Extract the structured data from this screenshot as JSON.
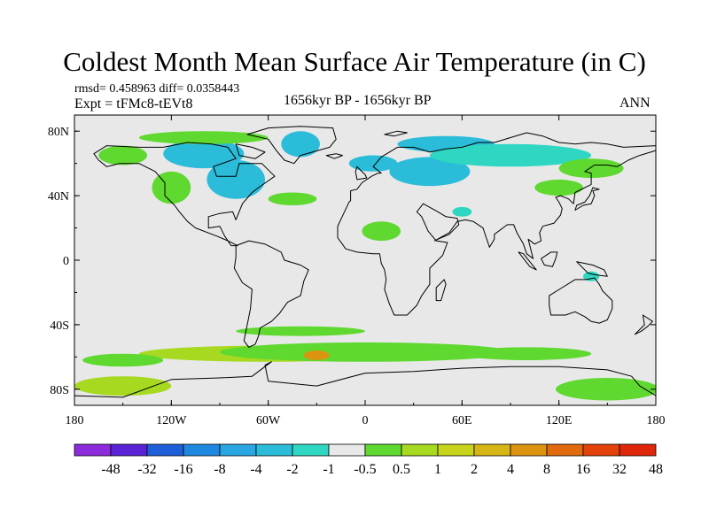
{
  "title": "Coldest Month Mean Surface Air Temperature (in C)",
  "stats": "rmsd= 0.458963 diff= 0.0358443",
  "experiment": "Expt = tFMc8-tEVt8",
  "period": "1656kyr BP - 1656kyr BP",
  "season": "ANN",
  "map": {
    "lon_range": [
      -180,
      180
    ],
    "lat_range": [
      -90,
      90
    ],
    "ocean_color": "#e8e8e8",
    "coast_color": "#000000",
    "x_ticks": [
      {
        "value": -180,
        "label": "180"
      },
      {
        "value": -120,
        "label": "120W"
      },
      {
        "value": -60,
        "label": "60W"
      },
      {
        "value": 0,
        "label": "0"
      },
      {
        "value": 60,
        "label": "60E"
      },
      {
        "value": 120,
        "label": "120E"
      },
      {
        "value": 180,
        "label": "180"
      }
    ],
    "y_ticks": [
      {
        "value": 80,
        "label": "80N"
      },
      {
        "value": 40,
        "label": "40N"
      },
      {
        "value": 0,
        "label": "0"
      },
      {
        "value": -40,
        "label": "40S"
      },
      {
        "value": -80,
        "label": "80S"
      }
    ]
  },
  "colorbar": {
    "colors": [
      "#8b2bdb",
      "#5a24d6",
      "#1e5ed8",
      "#1e88e0",
      "#2aa7e2",
      "#2bbcd9",
      "#2fd7c2",
      "#e8e8e8",
      "#5fd82f",
      "#a6d91f",
      "#c8d41c",
      "#d6b514",
      "#dc9410",
      "#e06a0c",
      "#e3420a",
      "#e0260a"
    ],
    "labels": [
      "-48",
      "-32",
      "-16",
      "-8",
      "-4",
      "-2",
      "-1",
      "-0.5",
      "0.5",
      "1",
      "2",
      "4",
      "8",
      "16",
      "32",
      "48"
    ]
  },
  "anomalies": [
    {
      "lon": 150,
      "lat": -80,
      "rx": 32,
      "ry": 7,
      "color": "#5fd82f"
    },
    {
      "lon": -150,
      "lat": -78,
      "rx": 30,
      "ry": 6,
      "color": "#a6d91f"
    },
    {
      "lon": -60,
      "lat": -58,
      "rx": 80,
      "ry": 5,
      "color": "#a6d91f"
    },
    {
      "lon": 0,
      "lat": -57,
      "rx": 90,
      "ry": 6,
      "color": "#5fd82f"
    },
    {
      "lon": -30,
      "lat": -59,
      "rx": 8,
      "ry": 3,
      "color": "#dc9410"
    },
    {
      "lon": 100,
      "lat": -58,
      "rx": 40,
      "ry": 4,
      "color": "#5fd82f"
    },
    {
      "lon": -150,
      "lat": -62,
      "rx": 25,
      "ry": 4,
      "color": "#5fd82f"
    },
    {
      "lon": -40,
      "lat": -44,
      "rx": 40,
      "ry": 3,
      "color": "#5fd82f"
    },
    {
      "lon": -100,
      "lat": 66,
      "rx": 25,
      "ry": 9,
      "color": "#2bbcd9"
    },
    {
      "lon": -80,
      "lat": 50,
      "rx": 18,
      "ry": 12,
      "color": "#2bbcd9"
    },
    {
      "lon": -120,
      "lat": 45,
      "rx": 12,
      "ry": 10,
      "color": "#5fd82f"
    },
    {
      "lon": -150,
      "lat": 65,
      "rx": 15,
      "ry": 6,
      "color": "#5fd82f"
    },
    {
      "lon": -45,
      "lat": 38,
      "rx": 15,
      "ry": 4,
      "color": "#5fd82f"
    },
    {
      "lon": 10,
      "lat": 18,
      "rx": 12,
      "ry": 6,
      "color": "#5fd82f"
    },
    {
      "lon": 5,
      "lat": 60,
      "rx": 15,
      "ry": 5,
      "color": "#2bbcd9"
    },
    {
      "lon": 40,
      "lat": 55,
      "rx": 25,
      "ry": 9,
      "color": "#2bbcd9"
    },
    {
      "lon": 50,
      "lat": 72,
      "rx": 30,
      "ry": 5,
      "color": "#2bbcd9"
    },
    {
      "lon": 90,
      "lat": 65,
      "rx": 50,
      "ry": 7,
      "color": "#2fd7c2"
    },
    {
      "lon": 140,
      "lat": 57,
      "rx": 20,
      "ry": 6,
      "color": "#5fd82f"
    },
    {
      "lon": 120,
      "lat": 45,
      "rx": 15,
      "ry": 5,
      "color": "#5fd82f"
    },
    {
      "lon": -100,
      "lat": 76,
      "rx": 40,
      "ry": 4,
      "color": "#5fd82f"
    },
    {
      "lon": -40,
      "lat": 72,
      "rx": 12,
      "ry": 8,
      "color": "#2bbcd9"
    },
    {
      "lon": 60,
      "lat": 30,
      "rx": 6,
      "ry": 3,
      "color": "#2fd7c2"
    },
    {
      "lon": 140,
      "lat": -10,
      "rx": 5,
      "ry": 3,
      "color": "#2fd7c2"
    }
  ],
  "continents": [
    {
      "name": "north-america",
      "points": [
        [
          -168,
          66
        ],
        [
          -160,
          71
        ],
        [
          -140,
          70
        ],
        [
          -125,
          70
        ],
        [
          -110,
          73
        ],
        [
          -95,
          72
        ],
        [
          -85,
          70
        ],
        [
          -80,
          63
        ],
        [
          -94,
          58
        ],
        [
          -92,
          52
        ],
        [
          -80,
          52
        ],
        [
          -78,
          60
        ],
        [
          -64,
          60
        ],
        [
          -56,
          52
        ],
        [
          -66,
          45
        ],
        [
          -70,
          42
        ],
        [
          -76,
          35
        ],
        [
          -80,
          25
        ],
        [
          -82,
          30
        ],
        [
          -90,
          29
        ],
        [
          -97,
          27
        ],
        [
          -97,
          20
        ],
        [
          -90,
          21
        ],
        [
          -87,
          15
        ],
        [
          -83,
          9
        ],
        [
          -79,
          9
        ],
        [
          -85,
          12
        ],
        [
          -92,
          15
        ],
        [
          -105,
          20
        ],
        [
          -110,
          24
        ],
        [
          -115,
          30
        ],
        [
          -118,
          34
        ],
        [
          -124,
          40
        ],
        [
          -124,
          48
        ],
        [
          -130,
          55
        ],
        [
          -140,
          60
        ],
        [
          -152,
          60
        ],
        [
          -160,
          58
        ],
        [
          -165,
          62
        ]
      ]
    },
    {
      "name": "greenland",
      "points": [
        [
          -73,
          78
        ],
        [
          -60,
          82
        ],
        [
          -40,
          83
        ],
        [
          -20,
          82
        ],
        [
          -18,
          75
        ],
        [
          -22,
          70
        ],
        [
          -40,
          65
        ],
        [
          -44,
          60
        ],
        [
          -50,
          62
        ],
        [
          -55,
          68
        ],
        [
          -60,
          75
        ]
      ]
    },
    {
      "name": "south-america",
      "points": [
        [
          -80,
          9
        ],
        [
          -72,
          12
        ],
        [
          -62,
          10
        ],
        [
          -52,
          5
        ],
        [
          -50,
          0
        ],
        [
          -40,
          -3
        ],
        [
          -35,
          -6
        ],
        [
          -38,
          -13
        ],
        [
          -40,
          -22
        ],
        [
          -48,
          -26
        ],
        [
          -53,
          -33
        ],
        [
          -58,
          -38
        ],
        [
          -65,
          -42
        ],
        [
          -66,
          -47
        ],
        [
          -68,
          -52
        ],
        [
          -72,
          -54
        ],
        [
          -75,
          -50
        ],
        [
          -73,
          -40
        ],
        [
          -71,
          -30
        ],
        [
          -70,
          -18
        ],
        [
          -76,
          -14
        ],
        [
          -81,
          -5
        ],
        [
          -80,
          2
        ]
      ]
    },
    {
      "name": "eurasia-africa",
      "points": [
        [
          -10,
          36
        ],
        [
          -17,
          21
        ],
        [
          -17,
          14
        ],
        [
          -12,
          7
        ],
        [
          -5,
          5
        ],
        [
          5,
          4
        ],
        [
          9,
          4
        ],
        [
          10,
          -2
        ],
        [
          12,
          -6
        ],
        [
          13,
          -12
        ],
        [
          12,
          -18
        ],
        [
          15,
          -27
        ],
        [
          18,
          -34
        ],
        [
          26,
          -34
        ],
        [
          32,
          -28
        ],
        [
          35,
          -22
        ],
        [
          40,
          -15
        ],
        [
          40,
          -5
        ],
        [
          48,
          3
        ],
        [
          51,
          11
        ],
        [
          44,
          12
        ],
        [
          39,
          18
        ],
        [
          35,
          27
        ],
        [
          32,
          30
        ],
        [
          36,
          35
        ],
        [
          45,
          30
        ],
        [
          50,
          27
        ],
        [
          57,
          26
        ],
        [
          58,
          22
        ],
        [
          52,
          16
        ],
        [
          45,
          13
        ],
        [
          43,
          12
        ],
        [
          52,
          17
        ],
        [
          57,
          24
        ],
        [
          62,
          25
        ],
        [
          67,
          24
        ],
        [
          73,
          20
        ],
        [
          77,
          8
        ],
        [
          80,
          13
        ],
        [
          80,
          16
        ],
        [
          88,
          22
        ],
        [
          92,
          22
        ],
        [
          94,
          17
        ],
        [
          98,
          10
        ],
        [
          100,
          4
        ],
        [
          104,
          1
        ],
        [
          103,
          5
        ],
        [
          101,
          13
        ],
        [
          105,
          10
        ],
        [
          109,
          12
        ],
        [
          108,
          17
        ],
        [
          110,
          21
        ],
        [
          117,
          23
        ],
        [
          121,
          28
        ],
        [
          122,
          32
        ],
        [
          120,
          36
        ],
        [
          118,
          39
        ],
        [
          121,
          40
        ],
        [
          126,
          38
        ],
        [
          129,
          35
        ],
        [
          130,
          42
        ],
        [
          140,
          47
        ],
        [
          140,
          54
        ],
        [
          136,
          55
        ],
        [
          142,
          59
        ],
        [
          150,
          59
        ],
        [
          156,
          58
        ],
        [
          163,
          62
        ],
        [
          170,
          65
        ],
        [
          180,
          68
        ],
        [
          180,
          71
        ],
        [
          160,
          70
        ],
        [
          150,
          72
        ],
        [
          140,
          73
        ],
        [
          130,
          72
        ],
        [
          120,
          73
        ],
        [
          110,
          77
        ],
        [
          100,
          79
        ],
        [
          90,
          76
        ],
        [
          80,
          73
        ],
        [
          70,
          73
        ],
        [
          60,
          70
        ],
        [
          50,
          69
        ],
        [
          40,
          67
        ],
        [
          30,
          70
        ],
        [
          20,
          70
        ],
        [
          10,
          64
        ],
        [
          5,
          58
        ],
        [
          10,
          54
        ],
        [
          8,
          54
        ],
        [
          4,
          52
        ],
        [
          -2,
          48
        ],
        [
          -5,
          44
        ],
        [
          -9,
          43
        ],
        [
          -9,
          37
        ]
      ]
    },
    {
      "name": "australia",
      "points": [
        [
          114,
          -22
        ],
        [
          122,
          -17
        ],
        [
          130,
          -12
        ],
        [
          137,
          -12
        ],
        [
          142,
          -11
        ],
        [
          145,
          -15
        ],
        [
          147,
          -19
        ],
        [
          153,
          -25
        ],
        [
          153,
          -30
        ],
        [
          150,
          -37
        ],
        [
          145,
          -39
        ],
        [
          140,
          -38
        ],
        [
          136,
          -35
        ],
        [
          130,
          -32
        ],
        [
          124,
          -34
        ],
        [
          115,
          -34
        ],
        [
          114,
          -28
        ]
      ]
    },
    {
      "name": "antarctica",
      "points": [
        [
          -180,
          -90
        ],
        [
          -180,
          -84
        ],
        [
          -150,
          -85
        ],
        [
          -120,
          -74
        ],
        [
          -90,
          -73
        ],
        [
          -70,
          -72
        ],
        [
          -58,
          -63
        ],
        [
          -62,
          -65
        ],
        [
          -60,
          -75
        ],
        [
          -30,
          -78
        ],
        [
          0,
          -70
        ],
        [
          30,
          -69
        ],
        [
          60,
          -67
        ],
        [
          90,
          -66
        ],
        [
          120,
          -66
        ],
        [
          150,
          -68
        ],
        [
          165,
          -72
        ],
        [
          170,
          -78
        ],
        [
          180,
          -84
        ],
        [
          180,
          -90
        ]
      ]
    },
    {
      "name": "britain",
      "points": [
        [
          -5,
          50
        ],
        [
          1,
          51
        ],
        [
          0,
          53
        ],
        [
          -3,
          56
        ],
        [
          -5,
          58
        ],
        [
          -6,
          55
        ]
      ]
    },
    {
      "name": "japan",
      "points": [
        [
          130,
          31
        ],
        [
          135,
          34
        ],
        [
          140,
          35
        ],
        [
          142,
          40
        ],
        [
          141,
          43
        ],
        [
          145,
          44
        ],
        [
          141,
          45
        ],
        [
          139,
          40
        ],
        [
          136,
          36
        ],
        [
          131,
          34
        ]
      ]
    },
    {
      "name": "madagascar",
      "points": [
        [
          44,
          -25
        ],
        [
          47,
          -25
        ],
        [
          50,
          -15
        ],
        [
          49,
          -12
        ],
        [
          44,
          -17
        ]
      ]
    },
    {
      "name": "new-zealand",
      "points": [
        [
          172,
          -34
        ],
        [
          178,
          -38
        ],
        [
          175,
          -41
        ],
        [
          171,
          -44
        ],
        [
          167,
          -46
        ],
        [
          170,
          -43
        ],
        [
          173,
          -40
        ]
      ]
    },
    {
      "name": "borneo",
      "points": [
        [
          109,
          1
        ],
        [
          115,
          5
        ],
        [
          119,
          5
        ],
        [
          118,
          1
        ],
        [
          116,
          -4
        ],
        [
          111,
          -3
        ]
      ]
    },
    {
      "name": "sumatra",
      "points": [
        [
          95,
          5
        ],
        [
          98,
          4
        ],
        [
          106,
          -6
        ],
        [
          102,
          -4
        ]
      ]
    },
    {
      "name": "new-guinea",
      "points": [
        [
          131,
          -1
        ],
        [
          141,
          -3
        ],
        [
          148,
          -6
        ],
        [
          150,
          -10
        ],
        [
          142,
          -9
        ],
        [
          138,
          -8
        ]
      ]
    },
    {
      "name": "iceland",
      "points": [
        [
          -24,
          65
        ],
        [
          -18,
          66
        ],
        [
          -14,
          65
        ],
        [
          -19,
          63
        ]
      ]
    },
    {
      "name": "baffin",
      "points": [
        [
          -80,
          72
        ],
        [
          -70,
          70
        ],
        [
          -62,
          67
        ],
        [
          -68,
          63
        ],
        [
          -78,
          65
        ]
      ]
    },
    {
      "name": "svalbard",
      "points": [
        [
          12,
          78
        ],
        [
          20,
          80
        ],
        [
          26,
          79
        ],
        [
          18,
          77
        ]
      ]
    }
  ]
}
